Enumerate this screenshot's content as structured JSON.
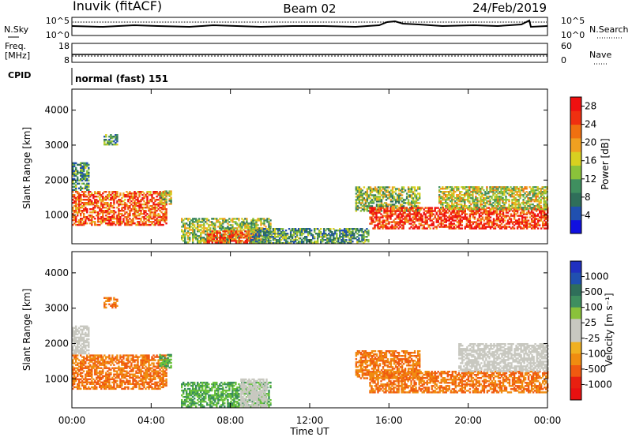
{
  "header": {
    "station": "Inuvik (fitACF)",
    "beam": "Beam 02",
    "date": "24/Feb/2019"
  },
  "top_panels": {
    "nsky": {
      "left_label": "N.Sky",
      "right_label": "N.Search",
      "left_ticks": [
        "10^5",
        "10^0"
      ],
      "right_ticks": [
        "10^5",
        "10^0"
      ]
    },
    "freq": {
      "left_label_1": "Freq.",
      "left_label_2": "[MHz]",
      "right_label": "Nave",
      "left_ticks": [
        "18",
        "8"
      ],
      "right_ticks": [
        "60",
        "0"
      ]
    },
    "cpid": {
      "label": "CPID",
      "text": "normal (fast) 151"
    }
  },
  "colors": {
    "scale": [
      "#1010e0",
      "#2050b0",
      "#2f6f5a",
      "#3f8f5f",
      "#8ac23a",
      "#d8d020",
      "#f0a020",
      "#f07010",
      "#f03010",
      "#f01010"
    ],
    "velocity_grey": "#c8c8c0"
  },
  "chart_data": [
    {
      "type": "heatmap",
      "name": "power",
      "xlabel": "Time UT",
      "ylabel": "Slant Range [km]",
      "x_ticks": [
        "00:00",
        "04:00",
        "08:00",
        "12:00",
        "16:00",
        "20:00",
        "00:00"
      ],
      "y_ticks": [
        "1000",
        "2000",
        "3000",
        "4000"
      ],
      "xlim_hours": [
        0,
        24
      ],
      "ylim_km": [
        180,
        4600
      ],
      "colorbar": {
        "label": "Power [dB]",
        "ticks": [
          "4",
          "8",
          "12",
          "16",
          "20",
          "24",
          "28"
        ],
        "range": [
          0,
          30
        ]
      },
      "regions": [
        {
          "t0": 0.0,
          "t1": 4.8,
          "r0": 700,
          "r1": 1650,
          "v": 24
        },
        {
          "t0": 4.4,
          "t1": 5.0,
          "r0": 1300,
          "r1": 1700,
          "v": 14
        },
        {
          "t0": 5.5,
          "t1": 10.0,
          "r0": 200,
          "r1": 900,
          "v": 14
        },
        {
          "t0": 6.8,
          "t1": 9.5,
          "r0": 200,
          "r1": 550,
          "v": 24
        },
        {
          "t0": 14.3,
          "t1": 17.5,
          "r0": 1100,
          "r1": 1800,
          "v": 14
        },
        {
          "t0": 15.0,
          "t1": 24.0,
          "r0": 600,
          "r1": 1200,
          "v": 26
        },
        {
          "t0": 18.5,
          "t1": 24.0,
          "r0": 1150,
          "r1": 1800,
          "v": 16
        },
        {
          "t0": 0.0,
          "t1": 0.8,
          "r0": 1700,
          "r1": 2500,
          "v": 10
        },
        {
          "t0": 1.6,
          "t1": 2.3,
          "r0": 3000,
          "r1": 3300,
          "v": 10
        },
        {
          "t0": 9.0,
          "t1": 15.0,
          "r0": 180,
          "r1": 600,
          "v": 10
        }
      ]
    },
    {
      "type": "heatmap",
      "name": "velocity",
      "xlabel": "Time UT",
      "ylabel": "Slant Range [km]",
      "x_ticks": [
        "00:00",
        "04:00",
        "08:00",
        "12:00",
        "16:00",
        "20:00",
        "00:00"
      ],
      "y_ticks": [
        "1000",
        "2000",
        "3000",
        "4000"
      ],
      "xlim_hours": [
        0,
        24
      ],
      "ylim_km": [
        180,
        4600
      ],
      "colorbar": {
        "label": "Velocity [m s⁻¹]",
        "ticks": [
          "1000",
          "500",
          "100",
          "25",
          "-25",
          "-100",
          "-500",
          "-1000"
        ]
      },
      "regions": [
        {
          "t0": 0.0,
          "t1": 4.8,
          "r0": 700,
          "r1": 1650,
          "v": -100
        },
        {
          "t0": 4.4,
          "t1": 5.0,
          "r0": 1300,
          "r1": 1700,
          "v": 100
        },
        {
          "t0": 5.5,
          "t1": 10.0,
          "r0": 200,
          "r1": 900,
          "v": 100
        },
        {
          "t0": 8.5,
          "t1": 9.8,
          "r0": 200,
          "r1": 1000,
          "v": 0
        },
        {
          "t0": 14.3,
          "t1": 17.5,
          "r0": 1000,
          "r1": 1800,
          "v": -100
        },
        {
          "t0": 15.0,
          "t1": 24.0,
          "r0": 600,
          "r1": 1200,
          "v": -100
        },
        {
          "t0": 19.5,
          "t1": 24.0,
          "r0": 1200,
          "r1": 2000,
          "v": 0
        },
        {
          "t0": 0.0,
          "t1": 0.8,
          "r0": 1700,
          "r1": 2500,
          "v": 0
        },
        {
          "t0": 1.6,
          "t1": 2.3,
          "r0": 3000,
          "r1": 3300,
          "v": -100
        }
      ]
    }
  ]
}
